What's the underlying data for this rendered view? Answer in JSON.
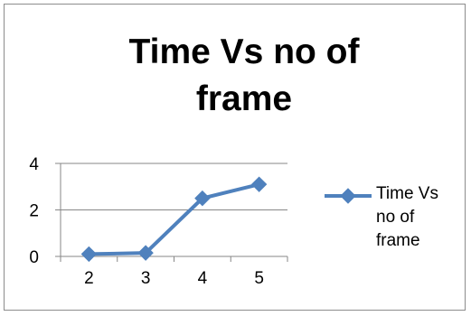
{
  "chart_data": {
    "type": "line",
    "title": "Time Vs no of frame",
    "xlabel": "",
    "ylabel": "",
    "categories": [
      "2",
      "3",
      "4",
      "5"
    ],
    "series": [
      {
        "name": "Time Vs no of frame",
        "values": [
          0.1,
          0.15,
          2.5,
          3.1
        ],
        "color": "#4f81bd",
        "marker": "diamond"
      }
    ],
    "ylim": [
      0,
      4
    ],
    "yticks": [
      "0",
      "2",
      "4"
    ],
    "grid": "horizontal",
    "legend": "right"
  }
}
